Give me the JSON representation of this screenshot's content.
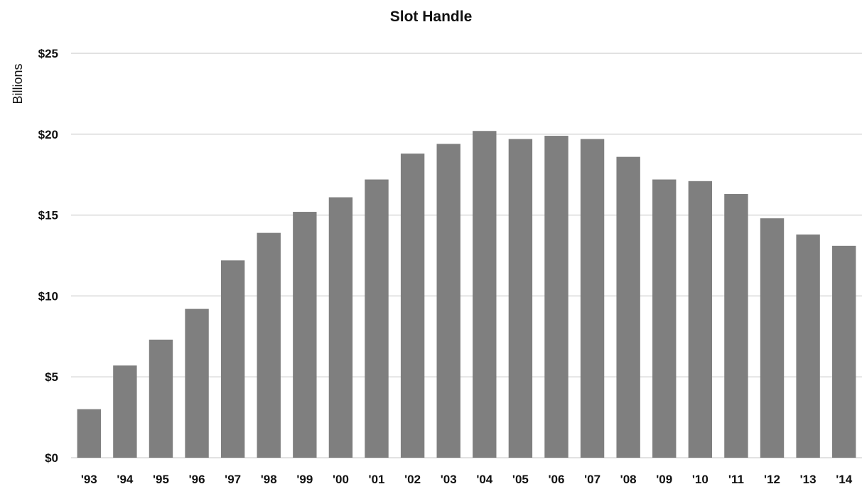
{
  "chart_data": {
    "type": "bar",
    "title": "Slot Handle",
    "ylabel": "Billions",
    "xlabel": "",
    "categories": [
      "'93",
      "'94",
      "'95",
      "'96",
      "'97",
      "'98",
      "'99",
      "'00",
      "'01",
      "'02",
      "'03",
      "'04",
      "'05",
      "'06",
      "'07",
      "'08",
      "'09",
      "'10",
      "'11",
      "'12",
      "'13",
      "'14"
    ],
    "values": [
      3.0,
      5.7,
      7.3,
      9.2,
      12.2,
      13.9,
      15.2,
      16.1,
      17.2,
      18.8,
      19.4,
      20.2,
      19.7,
      19.9,
      19.7,
      18.6,
      17.2,
      17.1,
      16.3,
      14.8,
      13.8,
      13.1
    ],
    "ylim": [
      0,
      25
    ],
    "yticks": [
      "$0",
      "$5",
      "$10",
      "$15",
      "$20",
      "$25"
    ],
    "ytick_values": [
      0,
      5,
      10,
      15,
      20,
      25
    ],
    "grid": true,
    "bar_color": "#7f7f7f",
    "grid_color": "#d9d9d9"
  }
}
